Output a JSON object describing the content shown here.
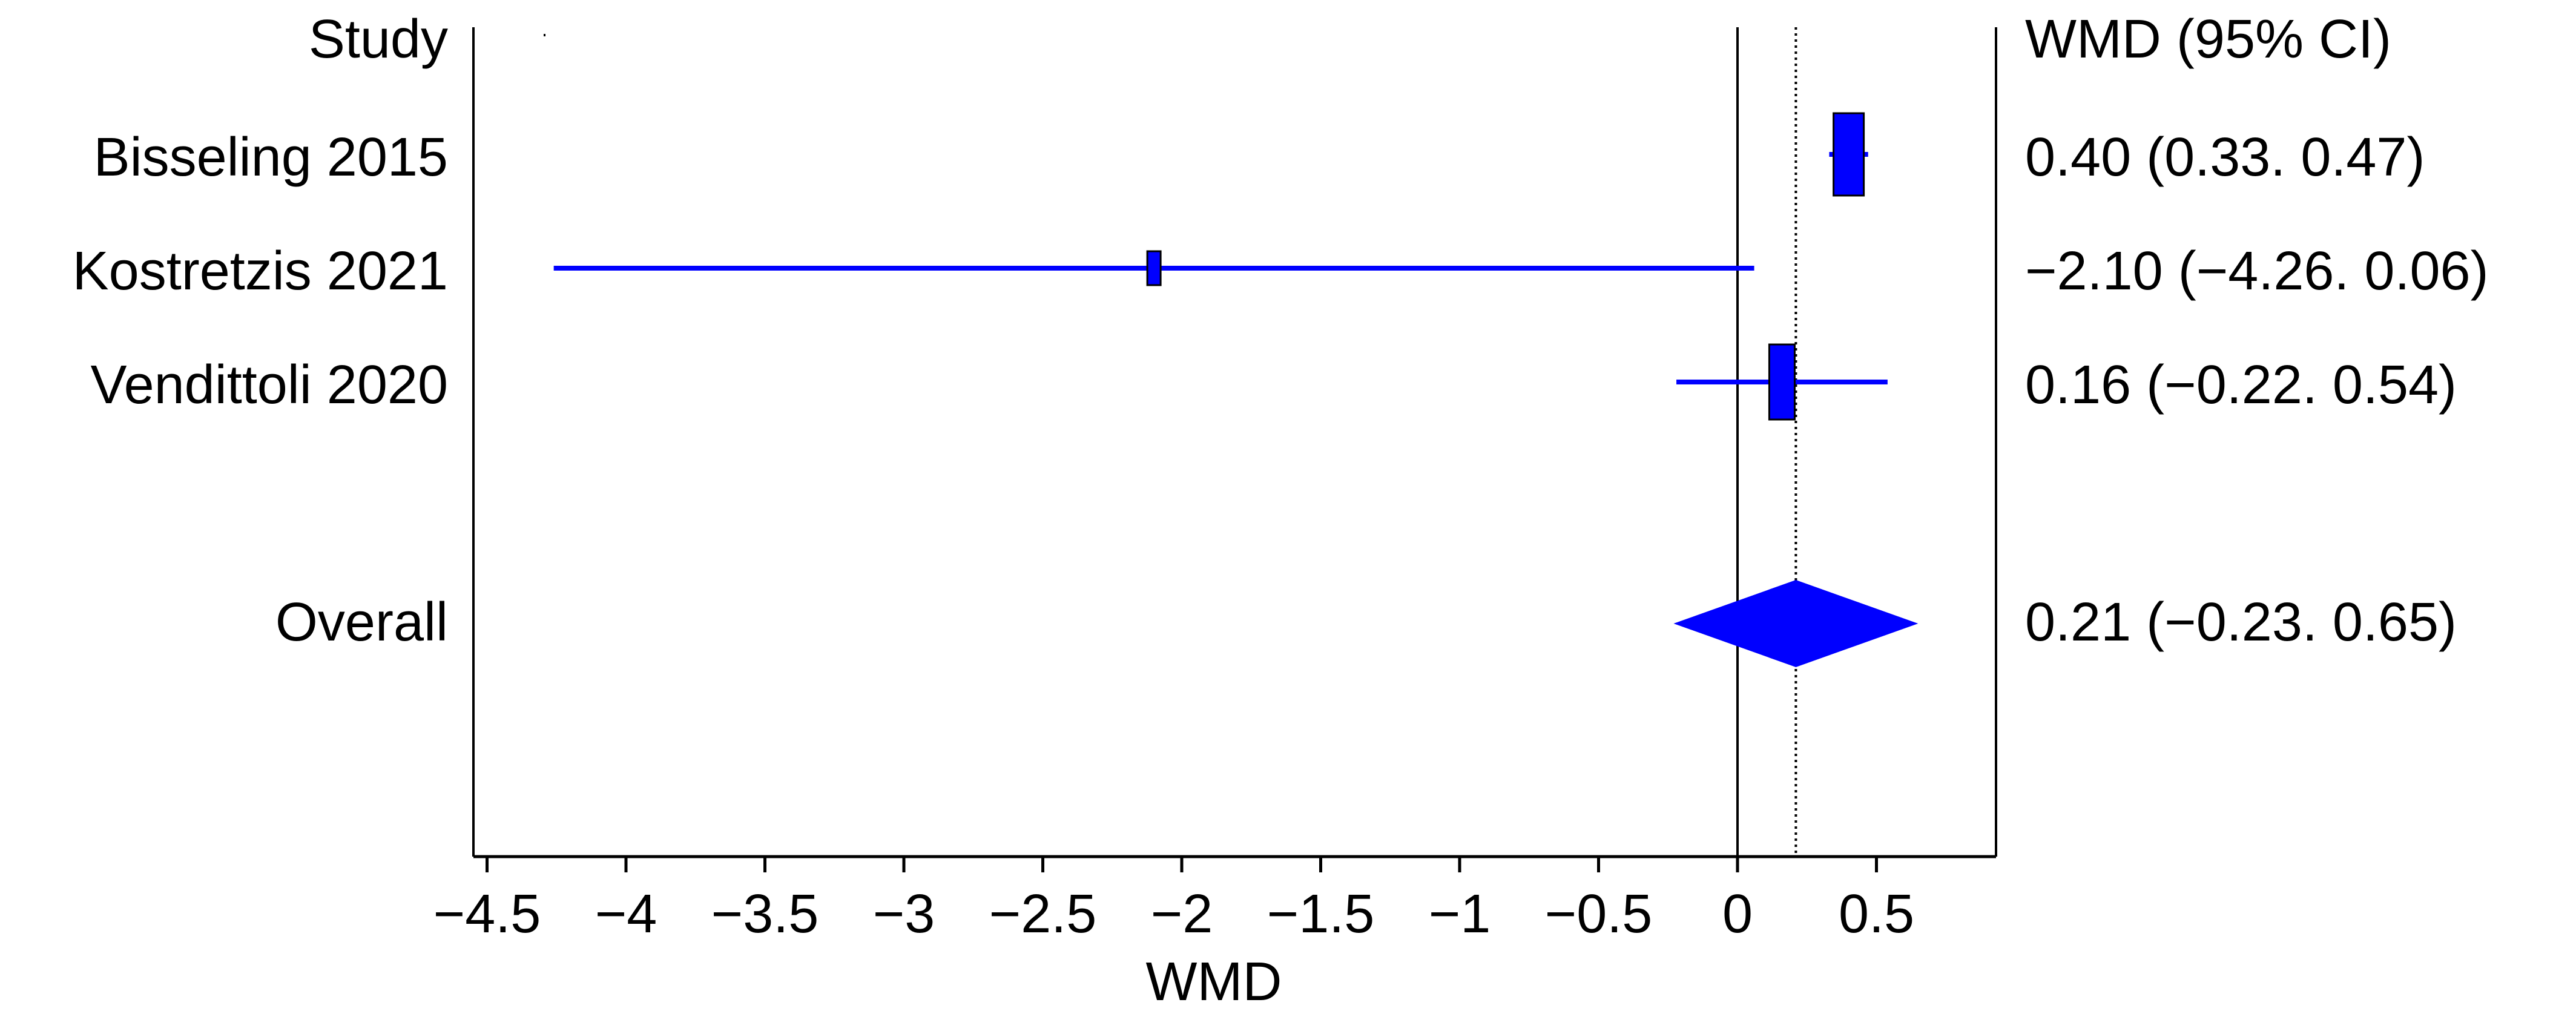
{
  "chart_data": {
    "type": "forest",
    "header_left": "Study",
    "header_right": "WMD (95% CI)",
    "xlabel": "WMD",
    "xlim": [
      -4.6,
      0.95
    ],
    "xticks": [
      -4.5,
      -4,
      -3.5,
      -3,
      -2.5,
      -2,
      -1.5,
      -1,
      -0.5,
      0,
      0.5
    ],
    "xtick_labels": [
      "−4.5",
      "−4",
      "−3.5",
      "−3",
      "−2.5",
      "−2",
      "−1.5",
      "−1",
      "−0.5",
      "0",
      "0.5"
    ],
    "null_line": 0,
    "overall_line": 0.21,
    "studies": [
      {
        "name": "Bisseling 2015",
        "estimate": 0.4,
        "lower": 0.33,
        "upper": 0.47,
        "label": "0.40 (0.33. 0.47)"
      },
      {
        "name": "Kostretzis 2021",
        "estimate": -2.1,
        "lower": -4.26,
        "upper": 0.06,
        "label": "−2.10 (−4.26. 0.06)"
      },
      {
        "name": "Vendittoli 2020",
        "estimate": 0.16,
        "lower": -0.22,
        "upper": 0.54,
        "label": "0.16 (−0.22. 0.54)"
      }
    ],
    "overall": {
      "name": "Overall",
      "estimate": 0.21,
      "lower": -0.23,
      "upper": 0.65,
      "label": "0.21 (−0.23. 0.65)"
    },
    "colors": {
      "marker": "#0000FF",
      "axis": "#000000"
    }
  }
}
